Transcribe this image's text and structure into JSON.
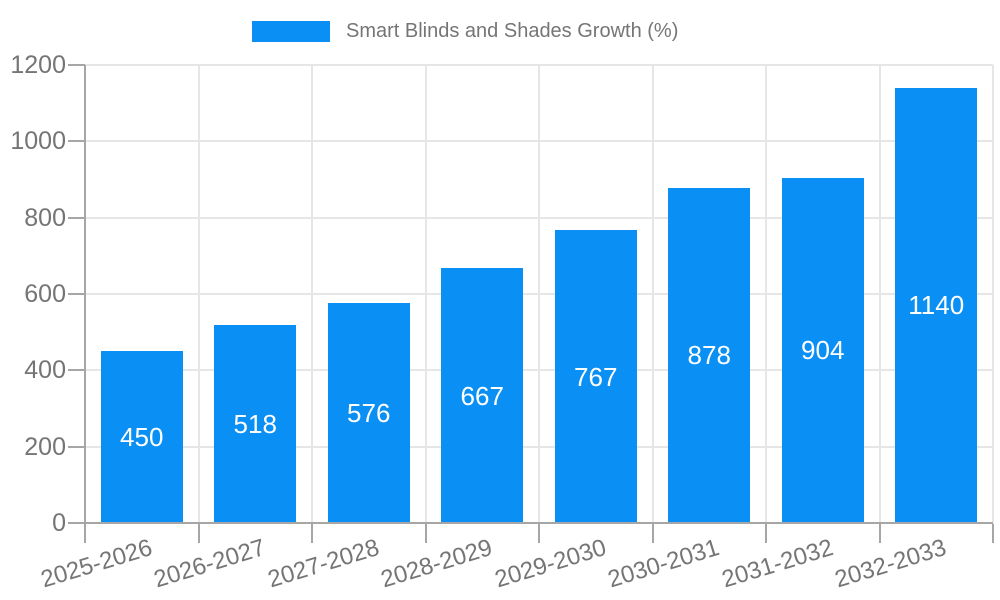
{
  "chart_data": {
    "type": "bar",
    "title": "Smart Blinds and Shades Growth (%)",
    "categories": [
      "2025-2026",
      "2026-2027",
      "2027-2028",
      "2028-2029",
      "2029-2030",
      "2030-2031",
      "2031-2032",
      "2032-2033"
    ],
    "series": [
      {
        "name": "Smart Blinds and Shades Growth (%)",
        "values": [
          450,
          518,
          576,
          667,
          767,
          878,
          904,
          1140
        ]
      }
    ],
    "value_labels": [
      "450",
      "518",
      "576",
      "667",
      "767",
      "878",
      "904",
      "1140"
    ],
    "xlabel": "",
    "ylabel": "",
    "ylim": [
      0,
      1200
    ],
    "yticks": [
      0,
      200,
      400,
      600,
      800,
      1000,
      1200
    ],
    "grid": true,
    "legend_position": "top",
    "x_label_rotation_deg": -17,
    "colors": {
      "bar": "#0a8ff4",
      "axis_line": "#a6a6a6",
      "gridline": "#e6e6e6",
      "tick_mark": "#a6a6a6",
      "tick_label": "#757575",
      "legend_text": "#757575",
      "value_label": "#ffffff",
      "background": "#ffffff"
    }
  }
}
